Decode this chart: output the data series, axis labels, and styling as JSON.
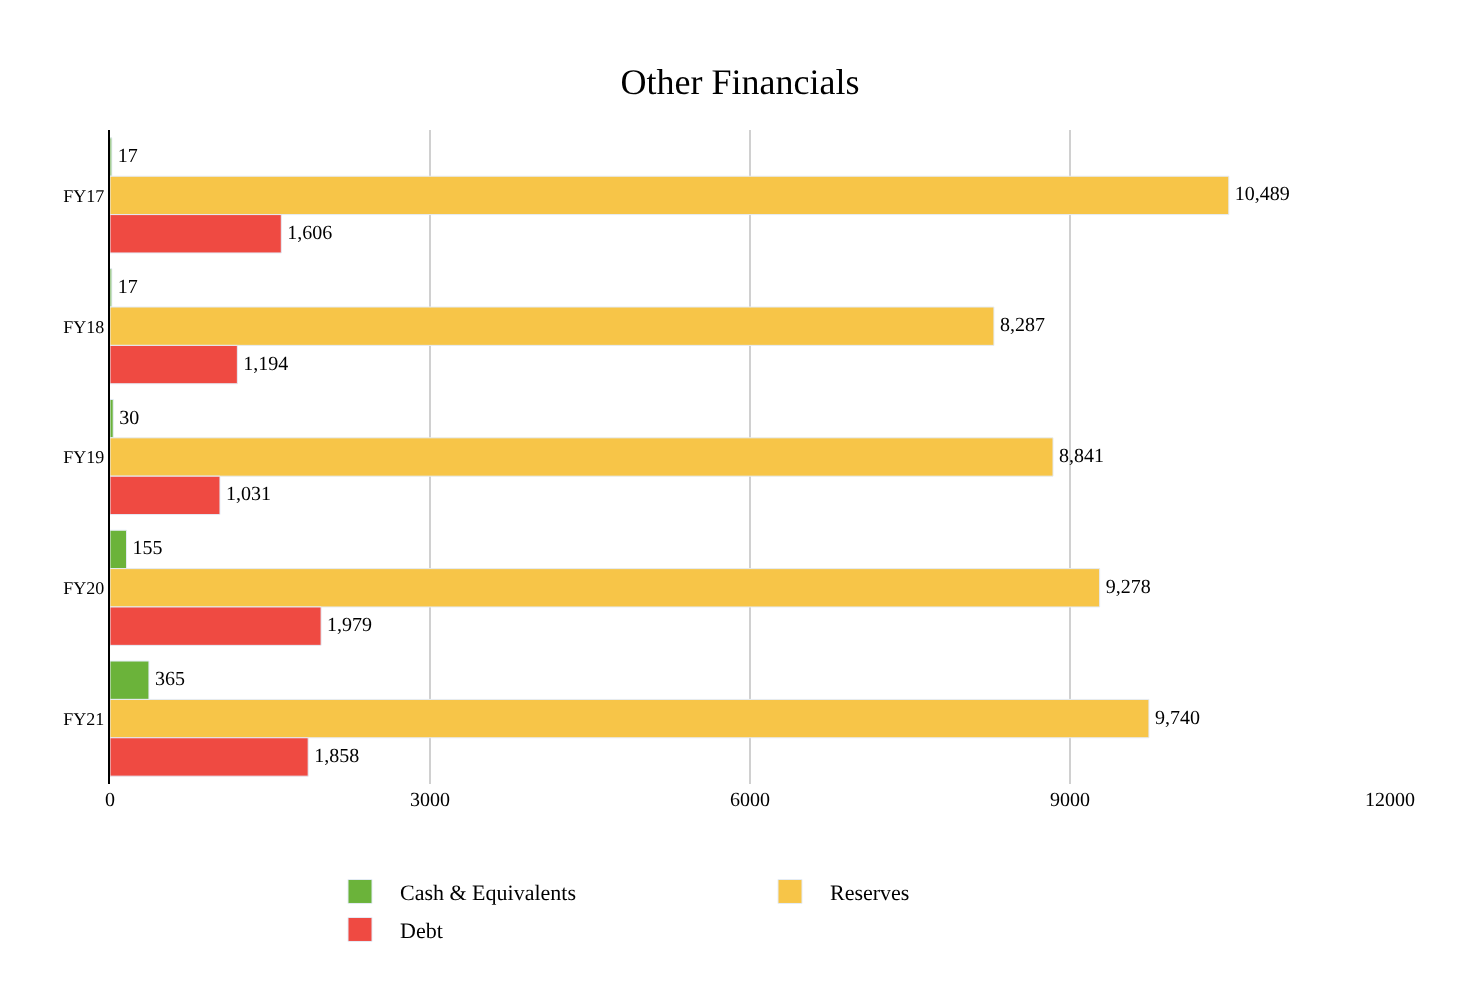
{
  "chart_data": {
    "type": "bar",
    "orientation": "horizontal",
    "title": "Other Financials",
    "categories": [
      "FY17",
      "FY18",
      "FY19",
      "FY20",
      "FY21"
    ],
    "series": [
      {
        "name": "Cash & Equivalents",
        "color": "#6bb33a",
        "values": [
          17,
          17,
          30,
          155,
          365
        ],
        "value_labels": [
          "17",
          "17",
          "30",
          "155",
          "365"
        ]
      },
      {
        "name": "Reserves",
        "color": "#f7c548",
        "values": [
          10489,
          8287,
          8841,
          9278,
          9740
        ],
        "value_labels": [
          "10,489",
          "8,287",
          "8,841",
          "9,278",
          "9,740"
        ]
      },
      {
        "name": "Debt",
        "color": "#ef4a42",
        "values": [
          1606,
          1194,
          1031,
          1979,
          1858
        ],
        "value_labels": [
          "1,606",
          "1,194",
          "1,031",
          "1,979",
          "1,858"
        ]
      }
    ],
    "xlim": [
      0,
      12000
    ],
    "xticks": [
      0,
      3000,
      6000,
      9000,
      12000
    ],
    "grid": "x",
    "legend": "bottom"
  }
}
